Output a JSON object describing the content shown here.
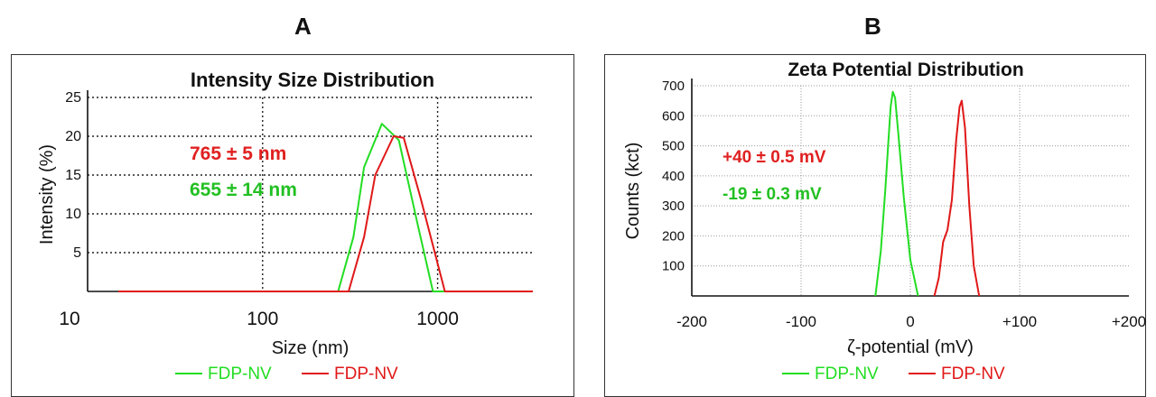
{
  "panel_labels": [
    "A",
    "B"
  ],
  "chart_data": [
    {
      "type": "line",
      "title": "Intensity Size Distribution",
      "xlabel": "Size (nm)",
      "ylabel": "Intensity (%)",
      "x_scale": "log",
      "xlim": [
        10,
        3500
      ],
      "ylim": [
        0,
        25
      ],
      "x_ticks": [
        10,
        100,
        1000
      ],
      "x_tick_labels": [
        "10",
        "100",
        "1000"
      ],
      "y_ticks": [
        5,
        10,
        15,
        20,
        25
      ],
      "y_tick_labels": [
        "5",
        "10",
        "15",
        "20",
        "25"
      ],
      "grid": true,
      "legend_position": "bottom-center",
      "annotations": [
        {
          "text": "765 ± 5 nm",
          "color": "#e02020"
        },
        {
          "text": "655 ± 14 nm",
          "color": "#22c022"
        }
      ],
      "series": [
        {
          "name": "FDP-NV",
          "color": "#22dd22",
          "x": [
            15,
            270,
            330,
            380,
            480,
            600,
            780,
            940,
            3500
          ],
          "y": [
            0,
            0,
            7,
            16,
            21.6,
            19.5,
            8,
            0,
            0
          ]
        },
        {
          "name": "FDP-NV",
          "color": "#e01818",
          "x": [
            15,
            310,
            380,
            440,
            560,
            640,
            800,
            1100,
            3500
          ],
          "y": [
            0,
            0,
            7,
            15,
            20,
            19.8,
            12,
            0,
            0
          ]
        }
      ]
    },
    {
      "type": "line",
      "title": "Zeta Potential Distribution",
      "xlabel": "ζ-potential (mV)",
      "ylabel": "Counts (kct)",
      "xlim": [
        -200,
        200
      ],
      "ylim": [
        0,
        700
      ],
      "x_ticks": [
        -200,
        -100,
        0,
        100,
        200
      ],
      "x_tick_labels": [
        "-200",
        "-100",
        "0",
        "+100",
        "+200"
      ],
      "y_ticks": [
        100,
        200,
        300,
        400,
        500,
        600,
        700
      ],
      "y_tick_labels": [
        "100",
        "200",
        "300",
        "400",
        "500",
        "600",
        "700"
      ],
      "grid": true,
      "legend_position": "bottom-center",
      "annotations": [
        {
          "text": "+40 ± 0.5 mV",
          "color": "#e02020"
        },
        {
          "text": "-19 ± 0.3 mV",
          "color": "#22c022"
        }
      ],
      "series": [
        {
          "name": "FDP-NV",
          "color": "#22dd22",
          "x": [
            -32,
            -27,
            -23,
            -20,
            -18,
            -16,
            -14,
            -11,
            -6,
            0,
            7
          ],
          "y": [
            0,
            150,
            350,
            520,
            630,
            680,
            660,
            540,
            330,
            120,
            0
          ]
        },
        {
          "name": "FDP-NV",
          "color": "#e01818",
          "x": [
            22,
            26,
            30,
            34,
            38,
            42,
            45,
            47,
            50,
            54,
            58,
            63
          ],
          "y": [
            0,
            60,
            180,
            220,
            320,
            520,
            630,
            650,
            560,
            300,
            100,
            0
          ]
        }
      ]
    }
  ]
}
